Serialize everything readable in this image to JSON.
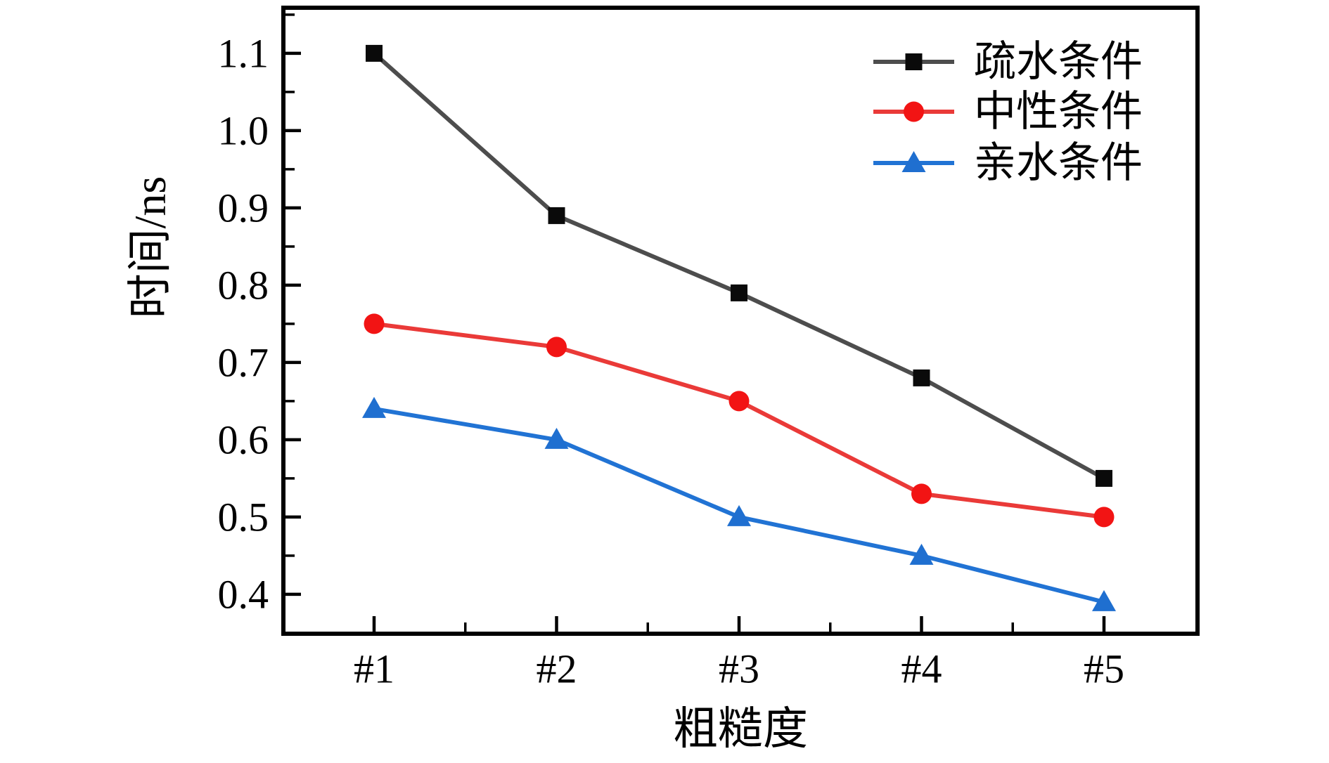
{
  "figure": {
    "background": "#ffffff"
  },
  "chart_data": {
    "type": "line",
    "title": "",
    "xlabel": "粗糙度",
    "ylabel": "时间/ns",
    "categories": [
      "#1",
      "#2",
      "#3",
      "#4",
      "#5"
    ],
    "series": [
      {
        "id": "hydrophobic",
        "name": "疏水条件",
        "marker": "square",
        "line_color": "#4d4d4d",
        "marker_color": "#0a0a0a",
        "values": [
          1.1,
          0.89,
          0.79,
          0.68,
          0.55
        ]
      },
      {
        "id": "neutral",
        "name": "中性条件",
        "marker": "circle",
        "line_color": "#ea3a38",
        "marker_color": "#f21414",
        "values": [
          0.75,
          0.72,
          0.65,
          0.53,
          0.5
        ]
      },
      {
        "id": "hydrophilic",
        "name": "亲水条件",
        "marker": "triangle",
        "line_color": "#2173d4",
        "marker_color": "#1f6fd0",
        "values": [
          0.64,
          0.6,
          0.5,
          0.45,
          0.39
        ]
      }
    ],
    "yticks": [
      0.4,
      0.5,
      0.6,
      0.7,
      0.8,
      0.9,
      1.0,
      1.1
    ],
    "ytick_labels": [
      "0.4",
      "0.5",
      "0.6",
      "0.7",
      "0.8",
      "0.9",
      "1.0",
      "1.1"
    ],
    "minor_ytick_step": 0.05,
    "ylim": [
      0.349,
      1.159
    ],
    "grid": false,
    "legend_position": "top-right-inside",
    "legend": [
      "疏水条件",
      "中性条件",
      "亲水条件"
    ],
    "axis_color": "#000000",
    "tick_label_color": "#000000"
  }
}
